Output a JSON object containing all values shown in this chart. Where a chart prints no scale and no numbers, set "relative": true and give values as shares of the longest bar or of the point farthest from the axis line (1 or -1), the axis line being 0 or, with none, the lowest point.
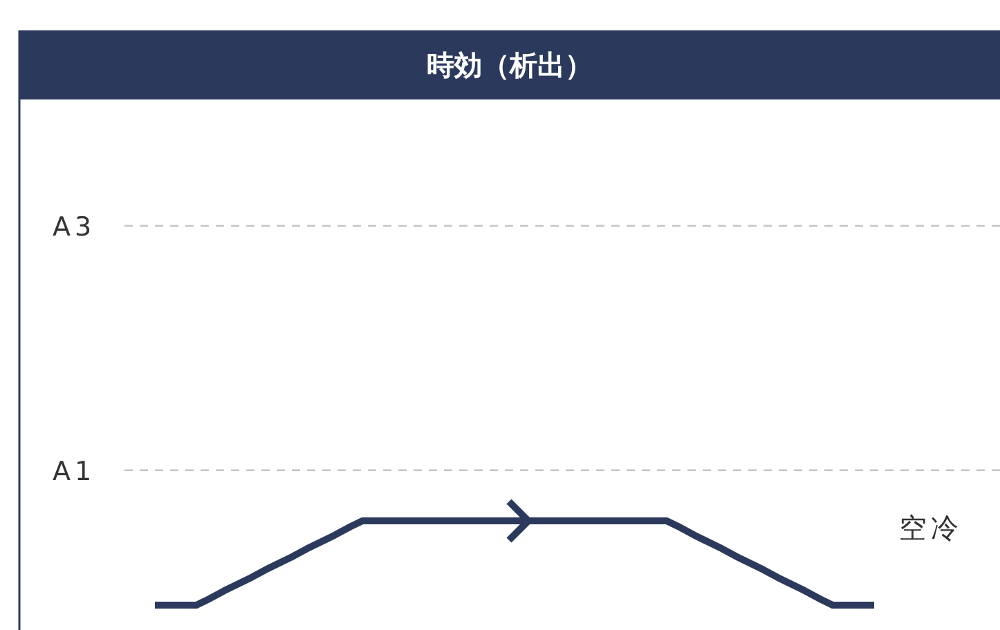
{
  "chart_data": {
    "type": "line",
    "title": "時効（析出）",
    "relative": true,
    "marker": "none",
    "line_style": "solid",
    "categories": [
      null,
      null,
      null,
      null,
      null,
      null,
      null,
      null,
      null,
      null,
      null,
      null,
      null,
      null,
      null,
      null,
      null,
      null,
      null,
      null,
      null,
      null,
      null,
      null,
      null,
      null,
      null,
      null,
      null,
      null,
      null,
      null,
      null,
      null,
      null,
      null,
      null,
      null,
      null,
      null,
      null,
      null,
      null,
      null,
      null,
      null,
      null,
      null,
      null,
      null,
      null,
      null,
      null
    ],
    "series": [
      {
        "color": "#2b3a5c",
        "values": [
          0,
          0,
          0,
          0,
          0.08,
          0.17,
          0.25,
          0.33,
          0.42,
          0.5,
          0.58,
          0.67,
          0.75,
          0.83,
          0.92,
          1,
          1,
          1,
          1,
          1,
          1,
          1,
          1,
          1,
          1,
          1,
          1,
          1,
          1,
          1,
          1,
          1,
          1,
          1,
          1,
          1,
          1,
          1,
          0.92,
          0.83,
          0.75,
          0.67,
          0.58,
          0.5,
          0.42,
          0.33,
          0.25,
          0.17,
          0.08,
          0,
          0,
          0,
          0
        ]
      }
    ],
    "ref_lines": [
      {
        "axis": "y",
        "value": 4.5,
        "label": "A3",
        "color": "#c4c4c4",
        "line_style": "dashed"
      },
      {
        "axis": "y",
        "value": 1.6,
        "label": "A1",
        "color": "#c4c4c4",
        "line_style": "dashed"
      }
    ],
    "annotations": [
      "空冷"
    ]
  }
}
